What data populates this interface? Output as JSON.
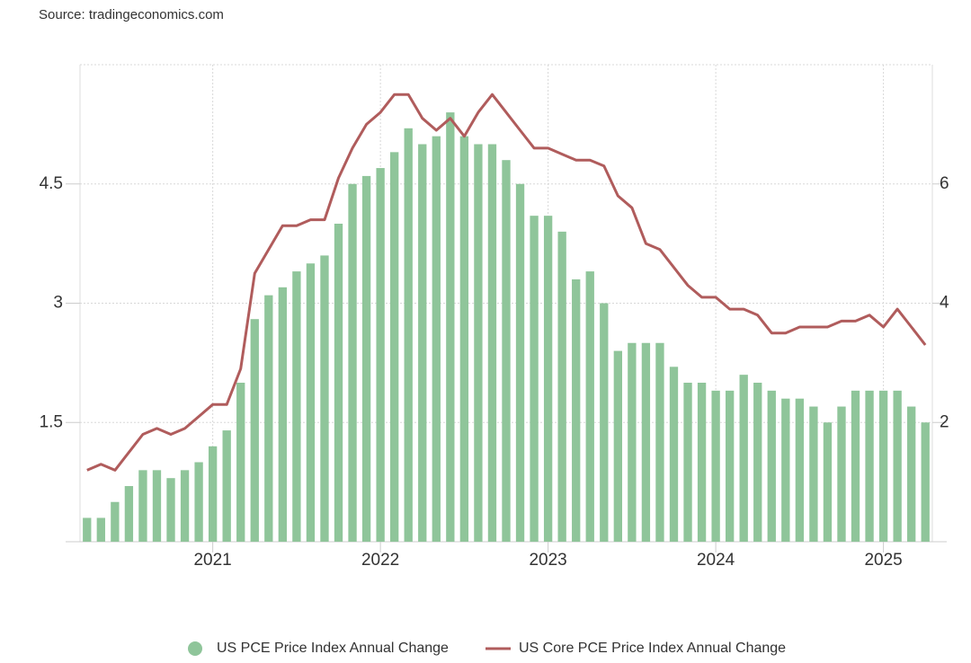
{
  "chart_data": {
    "type": "bar-line",
    "source": "Source: tradingeconomics.com",
    "categories": [
      null,
      null,
      null,
      null,
      null,
      null,
      null,
      null,
      null,
      "2021",
      null,
      null,
      null,
      null,
      null,
      null,
      null,
      null,
      null,
      null,
      null,
      "2022",
      null,
      null,
      null,
      null,
      null,
      null,
      null,
      null,
      null,
      null,
      null,
      "2023",
      null,
      null,
      null,
      null,
      null,
      null,
      null,
      null,
      null,
      null,
      null,
      "2024",
      null,
      null,
      null,
      null,
      null,
      null,
      null,
      null,
      null,
      null,
      null,
      "2025",
      null,
      null,
      null
    ],
    "ylim": [
      0,
      6
    ],
    "yticks": [
      1.5,
      3,
      4.5
    ],
    "y2lim": [
      0,
      8
    ],
    "y2ticks": [
      2,
      4,
      6
    ],
    "grid": true,
    "series": [
      {
        "name": "US PCE Price Index Annual Change",
        "type": "bar",
        "color": "#8fc59a",
        "values": [
          0.3,
          0.3,
          0.5,
          0.7,
          0.9,
          0.9,
          0.8,
          0.9,
          1.0,
          1.2,
          1.4,
          2.0,
          2.8,
          3.1,
          3.2,
          3.4,
          3.5,
          3.6,
          4.0,
          4.5,
          4.6,
          4.7,
          4.9,
          5.2,
          5.0,
          5.1,
          5.4,
          5.1,
          5.0,
          5.0,
          4.8,
          4.5,
          4.1,
          4.1,
          3.9,
          3.3,
          3.4,
          3.0,
          2.4,
          2.5,
          2.5,
          2.5,
          2.2,
          2.0,
          2.0,
          1.9,
          1.9,
          2.1,
          2.0,
          1.9,
          1.8,
          1.8,
          1.7,
          1.5,
          1.7,
          1.9,
          1.9,
          1.9,
          1.9,
          1.7,
          1.5
        ]
      },
      {
        "name": "US Core PCE Price Index Annual Change",
        "type": "line",
        "axis": "y2",
        "color": "#b05c5c",
        "values": [
          1.2,
          1.3,
          1.2,
          1.5,
          1.8,
          1.9,
          1.8,
          1.9,
          2.1,
          2.3,
          2.3,
          2.9,
          4.5,
          4.9,
          5.3,
          5.3,
          5.4,
          5.4,
          6.1,
          6.6,
          7.0,
          7.2,
          7.5,
          7.5,
          7.1,
          6.9,
          7.1,
          6.8,
          7.2,
          7.5,
          7.2,
          6.9,
          6.6,
          6.6,
          6.5,
          6.4,
          6.4,
          6.3,
          5.8,
          5.6,
          5.0,
          4.9,
          4.6,
          4.3,
          4.1,
          4.1,
          3.9,
          3.9,
          3.8,
          3.5,
          3.5,
          3.6,
          3.6,
          3.6,
          3.7,
          3.7,
          3.8,
          3.6,
          3.9,
          3.6,
          3.3
        ]
      }
    ]
  }
}
